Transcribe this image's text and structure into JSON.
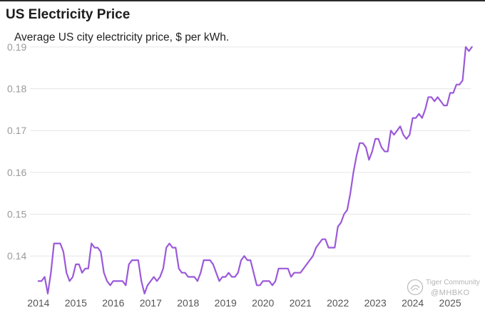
{
  "chart_data": {
    "type": "line",
    "title": "US Electricity Price",
    "subtitle": "Average US city electricity price, $ per kWh.",
    "xlabel": "",
    "ylabel": "",
    "ylim": [
      0.131,
      0.191
    ],
    "xlim": [
      2013.85,
      2025.55
    ],
    "yticks": [
      0.14,
      0.15,
      0.16,
      0.17,
      0.18,
      0.19
    ],
    "ytick_labels": [
      "0.14",
      "0.15",
      "0.16",
      "0.17",
      "0.18",
      "0.19"
    ],
    "xticks": [
      2014,
      2015,
      2016,
      2017,
      2018,
      2019,
      2020,
      2021,
      2022,
      2023,
      2024,
      2025
    ],
    "xtick_labels": [
      "2014",
      "2015",
      "2016",
      "2017",
      "2018",
      "2019",
      "2020",
      "2021",
      "2022",
      "2023",
      "2024",
      "2025"
    ],
    "grid": true,
    "line_color": "#9b59d9",
    "series": [
      {
        "x_start": 2014.0,
        "x_step": 0.08333,
        "values": [
          0.134,
          0.134,
          0.135,
          0.131,
          0.136,
          0.143,
          0.143,
          0.143,
          0.141,
          0.136,
          0.134,
          0.135,
          0.138,
          0.138,
          0.136,
          0.137,
          0.137,
          0.143,
          0.142,
          0.142,
          0.141,
          0.136,
          0.134,
          0.133,
          0.134,
          0.134,
          0.134,
          0.134,
          0.133,
          0.138,
          0.139,
          0.139,
          0.139,
          0.134,
          0.131,
          0.133,
          0.134,
          0.135,
          0.134,
          0.135,
          0.137,
          0.142,
          0.143,
          0.142,
          0.142,
          0.137,
          0.136,
          0.136,
          0.135,
          0.135,
          0.135,
          0.134,
          0.136,
          0.139,
          0.139,
          0.139,
          0.138,
          0.136,
          0.134,
          0.135,
          0.135,
          0.136,
          0.135,
          0.135,
          0.136,
          0.139,
          0.14,
          0.139,
          0.139,
          0.136,
          0.133,
          0.133,
          0.134,
          0.134,
          0.134,
          0.133,
          0.134,
          0.137,
          0.137,
          0.137,
          0.137,
          0.135,
          0.136,
          0.136,
          0.136,
          0.137,
          0.138,
          0.139,
          0.14,
          0.142,
          0.143,
          0.144,
          0.144,
          0.142,
          0.142,
          0.142,
          0.147,
          0.148,
          0.15,
          0.151,
          0.155,
          0.16,
          0.164,
          0.167,
          0.167,
          0.166,
          0.163,
          0.165,
          0.168,
          0.168,
          0.166,
          0.165,
          0.165,
          0.17,
          0.169,
          0.17,
          0.171,
          0.169,
          0.168,
          0.169,
          0.173,
          0.173,
          0.174,
          0.173,
          0.175,
          0.178,
          0.178,
          0.177,
          0.178,
          0.177,
          0.176,
          0.176,
          0.179,
          0.179,
          0.181,
          0.181,
          0.182,
          0.19,
          0.189,
          0.19
        ]
      }
    ]
  },
  "watermark": {
    "brand": "Tiger Community",
    "handle": "@MHBKO",
    "icon": "tiger-community-logo-icon"
  }
}
